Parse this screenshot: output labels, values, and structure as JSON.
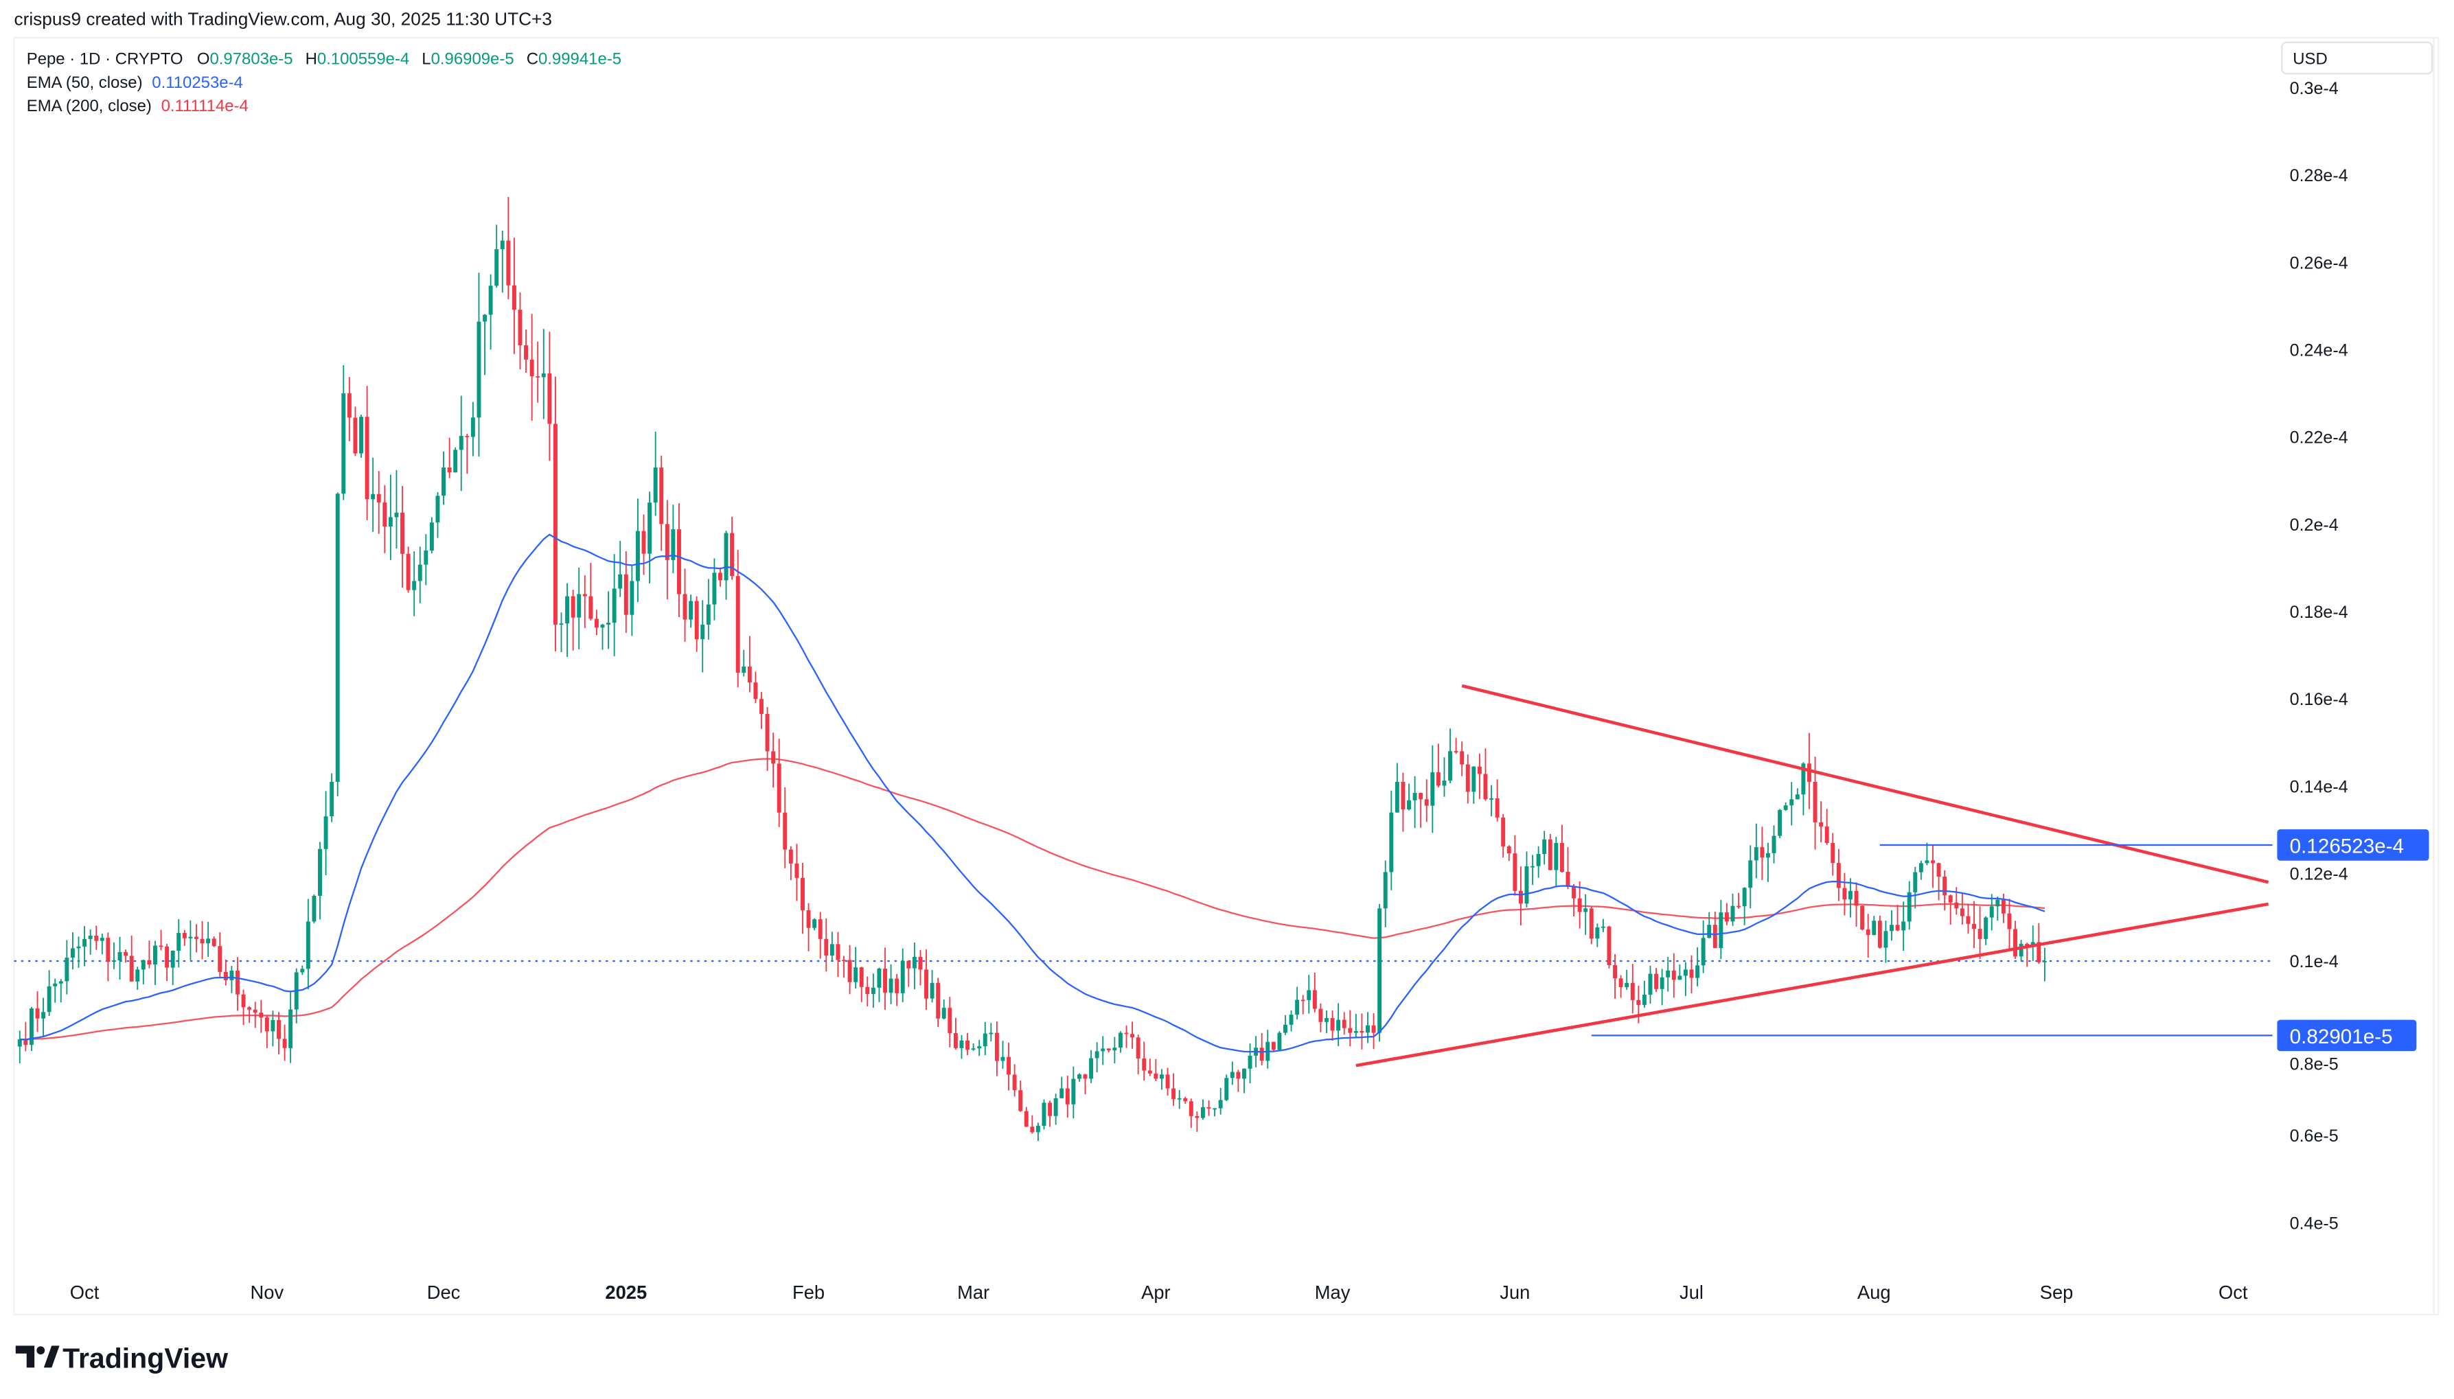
{
  "header": {
    "credit": "crispus9 created with TradingView.com, Aug 30, 2025 11:30 UTC+3"
  },
  "legend": {
    "symbol": "Pepe · 1D · CRYPTO",
    "o_label": "O",
    "o": "0.97803e-5",
    "h_label": "H",
    "h": "0.100559e-4",
    "l_label": "L",
    "l": "0.96909e-5",
    "c_label": "C",
    "c": "0.99941e-5",
    "ema50_label": "EMA (50, close)",
    "ema50": "0.110253e-4",
    "ema200_label": "EMA (200, close)",
    "ema200": "0.111114e-4"
  },
  "currency": "USD",
  "brand": "TradingView",
  "colors": {
    "up": "#089981",
    "down": "#f23645",
    "ema50": "#2962ff",
    "ema200": "#f7525f",
    "trendline": "#f23645",
    "level": "#2962ff"
  },
  "chart_data": {
    "type": "candlestick",
    "title": "Pepe · 1D · CRYPTO",
    "y_ticks": [
      "0.3e-4",
      "0.28e-4",
      "0.26e-4",
      "0.24e-4",
      "0.22e-4",
      "0.2e-4",
      "0.18e-4",
      "0.16e-4",
      "0.14e-4",
      "0.12e-4",
      "0.1e-4",
      "0.8e-5",
      "0.6e-5",
      "0.4e-5"
    ],
    "x_ticks": [
      "Oct",
      "Nov",
      "Dec",
      "2025",
      "Feb",
      "Mar",
      "Apr",
      "May",
      "Jun",
      "Jul",
      "Aug",
      "Sep",
      "Oct"
    ],
    "ylim": [
      3.4e-06,
      3.1e-05
    ],
    "xlim": [
      "2024-09-19",
      "2025-10-20"
    ],
    "grid": false,
    "approx_closes": [
      [
        "2024-09-20",
        8.2e-06
      ],
      [
        "2024-10-01",
        1.05e-05
      ],
      [
        "2024-10-10",
        9.8e-06
      ],
      [
        "2024-10-20",
        1.05e-05
      ],
      [
        "2024-10-31",
        8.7e-06
      ],
      [
        "2024-11-04",
        8e-06
      ],
      [
        "2024-11-08",
        1.09e-05
      ],
      [
        "2024-11-12",
        1.41e-05
      ],
      [
        "2024-11-13",
        2.07e-05
      ],
      [
        "2024-11-14",
        2.3e-05
      ],
      [
        "2024-11-20",
        2.05e-05
      ],
      [
        "2024-11-26",
        1.87e-05
      ],
      [
        "2024-12-01",
        2.13e-05
      ],
      [
        "2024-12-05",
        2.2e-05
      ],
      [
        "2024-12-08",
        2.48e-05
      ],
      [
        "2024-12-10",
        2.63e-05
      ],
      [
        "2024-12-14",
        2.41e-05
      ],
      [
        "2024-12-19",
        2.23e-05
      ],
      [
        "2024-12-20",
        1.77e-05
      ],
      [
        "2024-12-24",
        1.84e-05
      ],
      [
        "2024-12-28",
        1.77e-05
      ],
      [
        "2025-01-02",
        1.87e-05
      ],
      [
        "2025-01-06",
        2.13e-05
      ],
      [
        "2025-01-10",
        1.84e-05
      ],
      [
        "2025-01-14",
        1.77e-05
      ],
      [
        "2025-01-18",
        1.98e-05
      ],
      [
        "2025-01-20",
        1.66e-05
      ],
      [
        "2025-01-25",
        1.48e-05
      ],
      [
        "2025-01-30",
        1.19e-05
      ],
      [
        "2025-02-03",
        1.05e-05
      ],
      [
        "2025-02-10",
        9.4e-06
      ],
      [
        "2025-02-20",
        9.8e-06
      ],
      [
        "2025-02-26",
        8e-06
      ],
      [
        "2025-03-04",
        8.35e-06
      ],
      [
        "2025-03-10",
        6.2e-06
      ],
      [
        "2025-03-20",
        7.3e-06
      ],
      [
        "2025-03-26",
        8.35e-06
      ],
      [
        "2025-04-01",
        7.3e-06
      ],
      [
        "2025-04-08",
        6.4e-06
      ],
      [
        "2025-04-15",
        7.3e-06
      ],
      [
        "2025-04-22",
        8.35e-06
      ],
      [
        "2025-04-26",
        9.1e-06
      ],
      [
        "2025-05-04",
        8.35e-06
      ],
      [
        "2025-05-08",
        8.35e-06
      ],
      [
        "2025-05-09",
        1.12e-05
      ],
      [
        "2025-05-12",
        1.41e-05
      ],
      [
        "2025-05-16",
        1.37e-05
      ],
      [
        "2025-05-22",
        1.48e-05
      ],
      [
        "2025-05-27",
        1.37e-05
      ],
      [
        "2025-06-01",
        1.16e-05
      ],
      [
        "2025-06-08",
        1.27e-05
      ],
      [
        "2025-06-13",
        1.12e-05
      ],
      [
        "2025-06-21",
        9.1e-06
      ],
      [
        "2025-06-30",
        9.8e-06
      ],
      [
        "2025-07-07",
        1.09e-05
      ],
      [
        "2025-07-11",
        1.23e-05
      ],
      [
        "2025-07-18",
        1.37e-05
      ],
      [
        "2025-07-21",
        1.41e-05
      ],
      [
        "2025-07-24",
        1.27e-05
      ],
      [
        "2025-07-28",
        1.16e-05
      ],
      [
        "2025-08-02",
        1.03e-05
      ],
      [
        "2025-08-06",
        1.09e-05
      ],
      [
        "2025-08-10",
        1.23e-05
      ],
      [
        "2025-08-15",
        1.12e-05
      ],
      [
        "2025-08-19",
        1.05e-05
      ],
      [
        "2025-08-22",
        1.14e-05
      ],
      [
        "2025-08-25",
        1.01e-05
      ],
      [
        "2025-08-30",
        9.9941e-06
      ]
    ],
    "current_price": 9.9941e-06,
    "ema_series": [
      {
        "name": "EMA (50, close)",
        "period": 50
      },
      {
        "name": "EMA (200, close)",
        "period": 200
      }
    ],
    "annotations": {
      "levels": [
        {
          "value": "0.126523e-4",
          "price": 1.26523e-05
        },
        {
          "value": "0.82901e-5",
          "price": 8.2901e-06
        }
      ],
      "trendlines": [
        {
          "from": [
            "2025-05-23",
            1.63e-05
          ],
          "to": [
            "2025-10-07",
            1.18e-05
          ]
        },
        {
          "from": [
            "2025-05-05",
            7.6e-06
          ],
          "to": [
            "2025-10-07",
            1.13e-05
          ]
        }
      ]
    }
  }
}
